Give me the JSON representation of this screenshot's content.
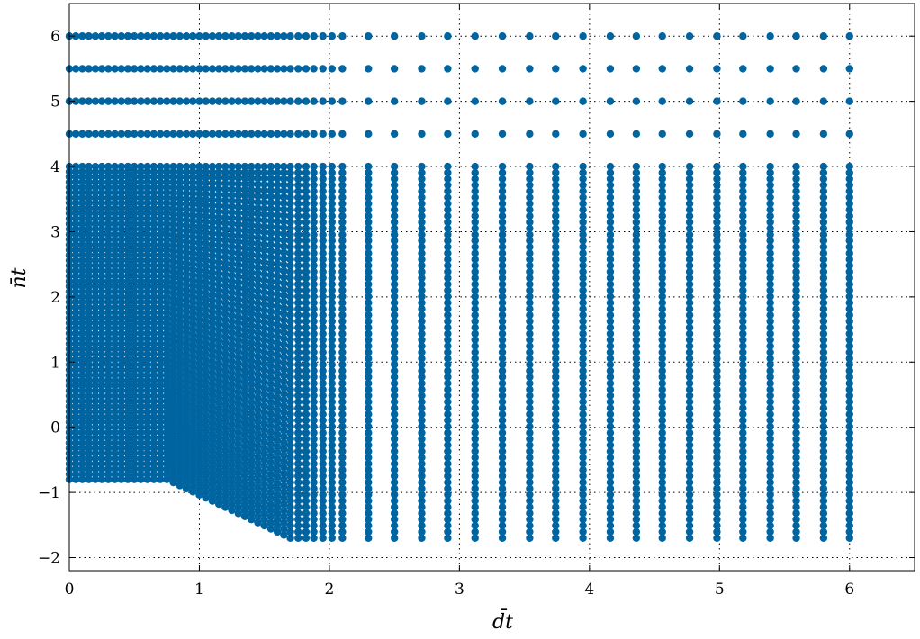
{
  "chart_data": {
    "type": "scatter",
    "title": "",
    "xlabel": "d̄t",
    "ylabel": "n̄t",
    "xlim": [
      0,
      6.5
    ],
    "ylim": [
      -2.2,
      6.5
    ],
    "xticks": [
      0,
      1,
      2,
      3,
      4,
      5,
      6
    ],
    "yticks": [
      -2,
      -1,
      0,
      1,
      2,
      3,
      4,
      5,
      6
    ],
    "xtick_labels": [
      "0",
      "1",
      "2",
      "3",
      "4",
      "5",
      "6"
    ],
    "ytick_labels": [
      "−2",
      "−1",
      "0",
      "1",
      "2",
      "3",
      "4",
      "5",
      "6"
    ],
    "grid": true,
    "grid_style": "dotted",
    "marker_color": "#0064A0",
    "series": [
      {
        "description_of_columns": "each column is a vertical line of points at fixed x",
        "column_x": [
          0.0,
          0.05,
          0.1,
          0.15,
          0.2,
          0.25,
          0.3,
          0.35,
          0.4,
          0.45,
          0.5,
          0.55,
          0.6,
          0.65,
          0.7,
          0.75,
          0.8,
          0.85,
          0.9,
          0.95,
          1.0,
          1.05,
          1.1,
          1.15,
          1.2,
          1.25,
          1.3,
          1.35,
          1.4,
          1.45,
          1.5,
          1.55,
          1.6,
          1.65,
          1.7,
          1.76,
          1.82,
          1.88,
          1.95,
          2.02,
          2.1,
          2.3,
          2.5,
          2.71,
          2.91,
          3.12,
          3.33,
          3.54,
          3.74,
          3.95,
          4.16,
          4.36,
          4.56,
          4.77,
          4.98,
          5.18,
          5.39,
          5.59,
          5.8,
          6.0
        ],
        "column_ymin_rule": "ymin = -0.8 for x ≤ 0.75, then decreasing linearly to -1.7 at x = 1.7, constant -1.7 beyond",
        "column_ymax": 4.0,
        "upper_rows_y": [
          4.5,
          5.0,
          5.5,
          6.0
        ]
      }
    ]
  }
}
